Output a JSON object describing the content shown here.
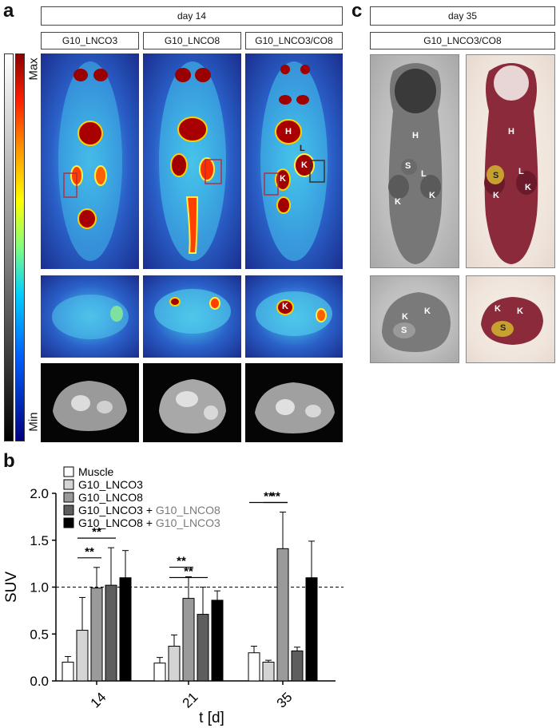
{
  "panel_a": {
    "letter": "a",
    "day_header": "day 14",
    "columns": [
      "G10_LNCO3",
      "G10_LNCO8",
      "G10_LNCO3/CO8"
    ],
    "scale_max": "Max",
    "scale_min": "Min",
    "organ_labels": {
      "heart": "H",
      "liver": "L",
      "kidney": "K"
    }
  },
  "panel_b": {
    "letter": "b"
  },
  "panel_c": {
    "letter": "c",
    "day_header": "day 35",
    "column": "G10_LNCO3/CO8",
    "organ_labels": {
      "heart": "H",
      "liver": "L",
      "spleen": "S",
      "kidney": "K"
    }
  },
  "chart_data": {
    "type": "bar",
    "categories": [
      "14",
      "21",
      "35"
    ],
    "xlabel": "t [d]",
    "ylabel": "SUV",
    "ylim": [
      0,
      2.0
    ],
    "yticks": [
      "0.0",
      "0.5",
      "1.0",
      "1.5",
      "2.0"
    ],
    "reference_line": 1.0,
    "legend_placement": "top-left",
    "series": [
      {
        "name": "Muscle",
        "color": "#ffffff",
        "values": [
          0.2,
          0.19,
          0.3
        ],
        "errors": [
          0.06,
          0.06,
          0.07
        ]
      },
      {
        "name": "G10_LNCO3",
        "color": "#d4d4d4",
        "values": [
          0.54,
          0.37,
          0.2
        ],
        "errors": [
          0.35,
          0.12,
          0.02
        ]
      },
      {
        "name": "G10_LNCO8",
        "color": "#9a9a9a",
        "values": [
          0.99,
          0.88,
          1.41
        ],
        "errors": [
          0.22,
          0.23,
          0.39
        ]
      },
      {
        "name_parts": [
          "G10_LNCO3",
          " + ",
          "G10_LNCO8"
        ],
        "color": "#5e5e5e",
        "values": [
          1.02,
          0.71,
          0.32
        ],
        "errors": [
          0.4,
          0.29,
          0.04
        ]
      },
      {
        "name_parts": [
          "G10_LNCO8",
          " + ",
          "G10_LNCO3"
        ],
        "color": "#000000",
        "values": [
          1.1,
          0.86,
          1.1
        ],
        "errors": [
          0.29,
          0.1,
          0.39
        ]
      }
    ],
    "significance": [
      {
        "group": 0,
        "from": 1,
        "to": 2,
        "label": "**"
      },
      {
        "group": 0,
        "from": 1,
        "to": 3,
        "label": "**"
      },
      {
        "group": 1,
        "from": 1,
        "to": 2,
        "label": "**"
      },
      {
        "group": 1,
        "from": 1,
        "to": 3,
        "label": "**"
      },
      {
        "group": 2,
        "from": 1,
        "to": 2,
        "label": "**"
      },
      {
        "group": 2,
        "from": 0,
        "to": 2,
        "label": "**"
      }
    ]
  }
}
